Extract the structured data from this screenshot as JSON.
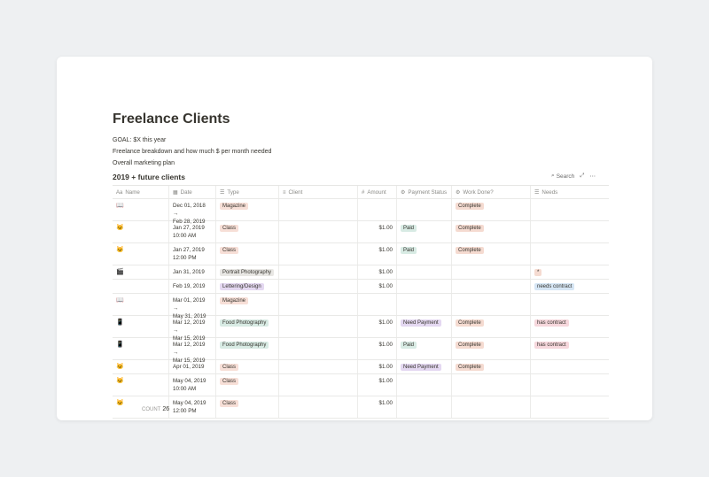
{
  "page": {
    "title": "Freelance Clients",
    "lines": [
      "GOAL: $X this year",
      "Freelance breakdown and how much $ per month needed",
      "Overall marketing plan"
    ]
  },
  "database": {
    "title": "2019 + future clients",
    "search_label": "Search",
    "columns": [
      "Name",
      "Date",
      "Type",
      "Client",
      "Amount",
      "Payment Status",
      "Work Done?",
      "Needs"
    ],
    "count_label": "COUNT",
    "count_value": "26",
    "rows": [
      {
        "icon": "📖",
        "date1": "Dec 01, 2018 →",
        "date2": "Feb 28, 2019",
        "type": "Magazine",
        "type_color": "#f7dfd7",
        "client": "",
        "amount": "",
        "payment": "",
        "payment_color": "",
        "work": "Complete",
        "work_color": "#f5dbd1",
        "needs": "",
        "needs_color": ""
      },
      {
        "icon": "🐱",
        "date1": "Jan 27, 2019",
        "date2": "10:00 AM",
        "type": "Class",
        "type_color": "#f7dfd7",
        "client": "",
        "amount": "$1.00",
        "payment": "Paid",
        "payment_color": "#d8ebe4",
        "work": "Complete",
        "work_color": "#f5dbd1",
        "needs": "",
        "needs_color": ""
      },
      {
        "icon": "🐱",
        "date1": "Jan 27, 2019",
        "date2": "12:00 PM",
        "type": "Class",
        "type_color": "#f7dfd7",
        "client": "",
        "amount": "$1.00",
        "payment": "Paid",
        "payment_color": "#d8ebe4",
        "work": "Complete",
        "work_color": "#f5dbd1",
        "needs": "",
        "needs_color": ""
      },
      {
        "icon": "🎬",
        "date1": "Jan 31, 2019",
        "date2": "",
        "type": "Portrait Photography",
        "type_color": "#e8e7e4",
        "client": "",
        "amount": "$1.00",
        "payment": "",
        "payment_color": "",
        "work": "",
        "work_color": "",
        "needs": "*",
        "needs_color": "#f5dbd1"
      },
      {
        "icon": "",
        "date1": "Feb 19, 2019",
        "date2": "",
        "type": "Lettering/Design",
        "type_color": "#e4d8f1",
        "client": "",
        "amount": "$1.00",
        "payment": "",
        "payment_color": "",
        "work": "",
        "work_color": "",
        "needs": "needs contract",
        "needs_color": "#d6e6f5"
      },
      {
        "icon": "📖",
        "date1": "Mar 01, 2019 →",
        "date2": "May 31, 2019",
        "type": "Magazine",
        "type_color": "#f7dfd7",
        "client": "",
        "amount": "",
        "payment": "",
        "payment_color": "",
        "work": "",
        "work_color": "",
        "needs": "",
        "needs_color": ""
      },
      {
        "icon": "📱",
        "date1": "Mar 12, 2019 →",
        "date2": "Mar 15, 2019",
        "type": "Food Photography",
        "type_color": "#d8ebe4",
        "client": "",
        "amount": "$1.00",
        "payment": "Need Payment",
        "payment_color": "#e4d8f1",
        "work": "Complete",
        "work_color": "#f5dbd1",
        "needs": "has contract",
        "needs_color": "#f6d7dc"
      },
      {
        "icon": "📱",
        "date1": "Mar 12, 2019 →",
        "date2": "Mar 15, 2019",
        "type": "Food Photography",
        "type_color": "#d8ebe4",
        "client": "",
        "amount": "$1.00",
        "payment": "Paid",
        "payment_color": "#d8ebe4",
        "work": "Complete",
        "work_color": "#f5dbd1",
        "needs": "has contract",
        "needs_color": "#f6d7dc"
      },
      {
        "icon": "🐱",
        "date1": "Apr 01, 2019",
        "date2": "",
        "type": "Class",
        "type_color": "#f7dfd7",
        "client": "",
        "amount": "$1.00",
        "payment": "Need Payment",
        "payment_color": "#e4d8f1",
        "work": "Complete",
        "work_color": "#f5dbd1",
        "needs": "",
        "needs_color": ""
      },
      {
        "icon": "🐱",
        "date1": "May 04, 2019",
        "date2": "10:00 AM",
        "type": "Class",
        "type_color": "#f7dfd7",
        "client": "",
        "amount": "$1.00",
        "payment": "",
        "payment_color": "",
        "work": "",
        "work_color": "",
        "needs": "",
        "needs_color": ""
      },
      {
        "icon": "🐱",
        "date1": "May 04, 2019",
        "date2": "12:00 PM",
        "type": "Class",
        "type_color": "#f7dfd7",
        "client": "",
        "amount": "$1.00",
        "payment": "",
        "payment_color": "",
        "work": "",
        "work_color": "",
        "needs": "",
        "needs_color": ""
      }
    ]
  },
  "icons": {
    "name_col": "Aa",
    "date_col": "▦",
    "type_col": "☰",
    "client_col": "≡",
    "amount_col": "#",
    "payment_col": "⚙",
    "work_col": "⚙",
    "needs_col": "☰",
    "search": "⌕",
    "expand": "⤢",
    "more": "⋯"
  }
}
